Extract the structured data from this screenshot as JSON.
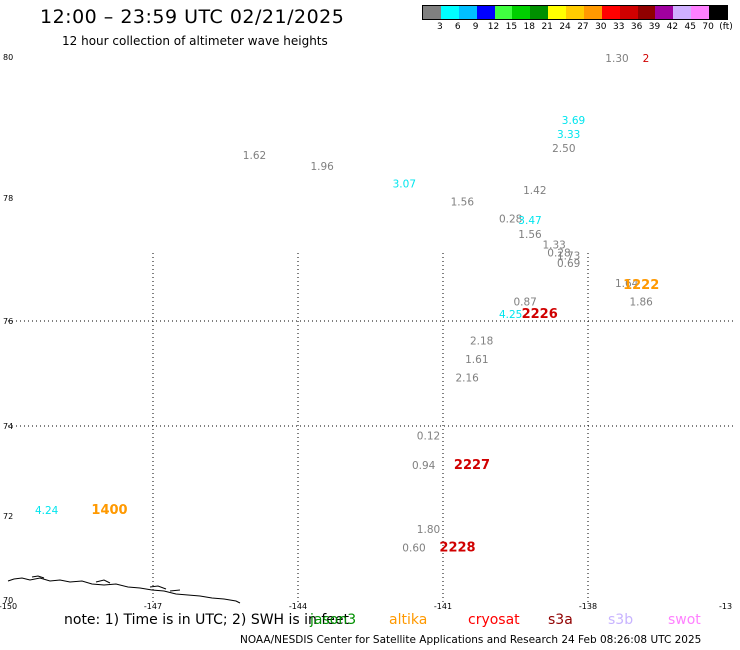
{
  "header": {
    "title": "12:00 – 23:59 UTC 02/21/2025",
    "subtitle": "12 hour collection of altimeter wave heights"
  },
  "legend": {
    "colors": [
      "#808080",
      "#00ffff",
      "#00bfff",
      "#0000ff",
      "#40ff40",
      "#00d000",
      "#009000",
      "#ffff00",
      "#ffcc00",
      "#ff9900",
      "#ff0000",
      "#d00000",
      "#900000",
      "#a0009f",
      "#d0b0ff",
      "#ff80ff",
      "#000000"
    ],
    "labels": [
      "3",
      "6",
      "9",
      "12",
      "15",
      "18",
      "21",
      "24",
      "27",
      "30",
      "33",
      "36",
      "39",
      "42",
      "45",
      "70",
      "(ft)"
    ]
  },
  "map": {
    "lat_ticks": [
      "80",
      "78",
      "76",
      "74",
      "72",
      "70"
    ],
    "lon_ticks": [
      "-150",
      "-147",
      "-144",
      "-141",
      "-138",
      "-13"
    ],
    "observations": [
      {
        "text": "1.30",
        "color": "#808080",
        "lon": -137.4,
        "lat": 79.93
      },
      {
        "text": "2",
        "color": "#d00000",
        "lon": -136.8,
        "lat": 79.93
      },
      {
        "text": "3.69",
        "color": "#00e5ee",
        "lon": -138.3,
        "lat": 79.05
      },
      {
        "text": "3.33",
        "color": "#00e5ee",
        "lon": -138.4,
        "lat": 78.85
      },
      {
        "text": "2.50",
        "color": "#808080",
        "lon": -138.5,
        "lat": 78.65
      },
      {
        "text": "1.62",
        "color": "#808080",
        "lon": -144.9,
        "lat": 78.55
      },
      {
        "text": "1.96",
        "color": "#808080",
        "lon": -143.5,
        "lat": 78.4
      },
      {
        "text": "3.07",
        "color": "#00e5ee",
        "lon": -141.8,
        "lat": 78.15
      },
      {
        "text": "1.42",
        "color": "#808080",
        "lon": -139.1,
        "lat": 78.06
      },
      {
        "text": "1.56",
        "color": "#808080",
        "lon": -140.6,
        "lat": 77.88
      },
      {
        "text": "0.28",
        "color": "#808080",
        "lon": -139.6,
        "lat": 77.6
      },
      {
        "text": "3.47",
        "color": "#00e5ee",
        "lon": -139.2,
        "lat": 77.58
      },
      {
        "text": "1.56",
        "color": "#808080",
        "lon": -139.2,
        "lat": 77.35
      },
      {
        "text": "1.33",
        "color": "#808080",
        "lon": -138.7,
        "lat": 77.18
      },
      {
        "text": "0.28",
        "color": "#808080",
        "lon": -138.6,
        "lat": 77.05
      },
      {
        "text": "1.73",
        "color": "#808080",
        "lon": -138.4,
        "lat": 77.0
      },
      {
        "text": "0.69",
        "color": "#808080",
        "lon": -138.4,
        "lat": 76.88
      },
      {
        "text": "1.64",
        "color": "#808080",
        "lon": -137.2,
        "lat": 76.55
      },
      {
        "text": "1222",
        "color": "#ff9900",
        "lon": -136.9,
        "lat": 76.52
      },
      {
        "text": "1.86",
        "color": "#808080",
        "lon": -136.9,
        "lat": 76.25
      },
      {
        "text": "0.87",
        "color": "#808080",
        "lon": -139.3,
        "lat": 76.25
      },
      {
        "text": "4.25",
        "color": "#00e5ee",
        "lon": -139.6,
        "lat": 76.05
      },
      {
        "text": "2226",
        "color": "#d00000",
        "lon": -139.0,
        "lat": 76.05
      },
      {
        "text": "2.18",
        "color": "#808080",
        "lon": -140.2,
        "lat": 75.55
      },
      {
        "text": "1.61",
        "color": "#808080",
        "lon": -140.3,
        "lat": 75.2
      },
      {
        "text": "2.16",
        "color": "#808080",
        "lon": -140.5,
        "lat": 74.85
      },
      {
        "text": "0.12",
        "color": "#808080",
        "lon": -141.3,
        "lat": 73.7
      },
      {
        "text": "0.94",
        "color": "#808080",
        "lon": -141.4,
        "lat": 73.05
      },
      {
        "text": "2227",
        "color": "#d00000",
        "lon": -140.4,
        "lat": 73.05
      },
      {
        "text": "4.24",
        "color": "#00e5ee",
        "lon": -149.2,
        "lat": 72.05
      },
      {
        "text": "1400",
        "color": "#ff9900",
        "lon": -147.9,
        "lat": 72.05
      },
      {
        "text": "1.80",
        "color": "#808080",
        "lon": -141.3,
        "lat": 71.6
      },
      {
        "text": "0.60",
        "color": "#808080",
        "lon": -141.6,
        "lat": 71.15
      },
      {
        "text": "2228",
        "color": "#d00000",
        "lon": -140.7,
        "lat": 71.15
      }
    ]
  },
  "footer": {
    "note": "note: 1) Time is in UTC; 2) SWH is in feet",
    "satellites": [
      {
        "name": "jason3",
        "color": "#009000"
      },
      {
        "name": "altika",
        "color": "#ff9900"
      },
      {
        "name": "cryosat",
        "color": "#ff0000"
      },
      {
        "name": "s3a",
        "color": "#900000"
      },
      {
        "name": "s3b",
        "color": "#c8b4ff"
      },
      {
        "name": "swot",
        "color": "#ff80ff"
      }
    ],
    "credit": "NOAA/NESDIS Center for Satellite Applications and Research    24 Feb 08:26:08 UTC 2025"
  }
}
